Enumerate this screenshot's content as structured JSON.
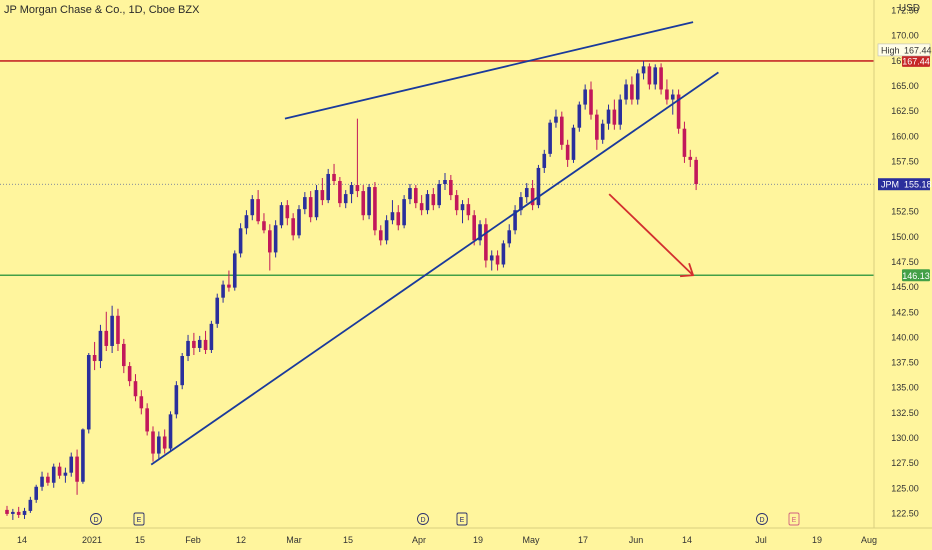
{
  "header": {
    "symbol_title": "JP Morgan Chase & Co., 1D, Cboe BZX",
    "currency": "USD"
  },
  "colors": {
    "background": "#FFF59D",
    "bull": "#2A2F9C",
    "bear": "#C2185B",
    "trendline": "#1A3A9C",
    "resistance": "#C62828",
    "support": "#43A047",
    "arrow": "#D32F2F",
    "price_line": "#5A6A9C"
  },
  "chart_data": {
    "type": "candlestick",
    "title": "JP Morgan Chase & Co., 1D, Cboe BZX",
    "ylabel": "USD",
    "ylim": [
      121.0,
      173.0
    ],
    "y_ticks": [
      122.5,
      125.0,
      127.5,
      130.0,
      132.5,
      135.0,
      137.5,
      140.0,
      142.5,
      145.0,
      147.5,
      150.0,
      152.5,
      155.0,
      157.5,
      160.0,
      162.5,
      165.0,
      167.5,
      170.0,
      172.5
    ],
    "x_ticks": [
      "14",
      "2021",
      "15",
      "Feb",
      "12",
      "Mar",
      "15",
      "Apr",
      "19",
      "May",
      "17",
      "Jun",
      "14",
      "Jul",
      "19",
      "Aug"
    ],
    "event_markers": [
      "D",
      "E",
      "D",
      "E",
      "D",
      "E"
    ],
    "price_labels": {
      "high": {
        "label": "High",
        "value": "167.44"
      },
      "resistance": {
        "value": "167.44"
      },
      "last": {
        "symbol": "JPM",
        "value": "155.18"
      },
      "support": {
        "value": "146.13"
      }
    },
    "candles": [
      [
        122.8,
        123.2,
        122.2,
        122.4
      ],
      [
        122.4,
        122.9,
        121.8,
        122.6
      ],
      [
        122.6,
        123.1,
        122.0,
        122.3
      ],
      [
        122.3,
        123.0,
        121.9,
        122.7
      ],
      [
        122.7,
        124.1,
        122.5,
        123.8
      ],
      [
        123.8,
        125.3,
        123.5,
        125.1
      ],
      [
        125.1,
        126.6,
        124.7,
        126.1
      ],
      [
        126.1,
        126.5,
        125.2,
        125.5
      ],
      [
        125.5,
        127.4,
        125.0,
        127.1
      ],
      [
        127.1,
        127.5,
        125.9,
        126.2
      ],
      [
        126.2,
        127.0,
        125.5,
        126.5
      ],
      [
        126.5,
        128.5,
        126.1,
        128.1
      ],
      [
        128.1,
        128.8,
        124.3,
        125.6
      ],
      [
        125.6,
        130.9,
        125.4,
        130.8
      ],
      [
        130.8,
        138.4,
        130.4,
        138.2
      ],
      [
        138.2,
        139.5,
        136.7,
        137.6
      ],
      [
        137.6,
        141.2,
        136.9,
        140.6
      ],
      [
        140.6,
        142.5,
        138.6,
        139.1
      ],
      [
        139.1,
        143.1,
        138.4,
        142.1
      ],
      [
        142.1,
        142.8,
        138.6,
        139.3
      ],
      [
        139.3,
        139.8,
        136.4,
        137.1
      ],
      [
        137.1,
        137.5,
        135.1,
        135.6
      ],
      [
        135.6,
        136.3,
        133.6,
        134.1
      ],
      [
        134.1,
        134.7,
        132.3,
        132.9
      ],
      [
        132.9,
        133.4,
        130.2,
        130.6
      ],
      [
        130.6,
        131.1,
        127.6,
        128.4
      ],
      [
        128.4,
        130.6,
        127.9,
        130.1
      ],
      [
        130.1,
        130.8,
        128.4,
        128.9
      ],
      [
        128.9,
        132.6,
        128.6,
        132.3
      ],
      [
        132.3,
        135.6,
        131.9,
        135.2
      ],
      [
        135.2,
        138.4,
        134.8,
        138.1
      ],
      [
        138.1,
        140.2,
        137.6,
        139.6
      ],
      [
        139.6,
        140.4,
        138.2,
        138.9
      ],
      [
        138.9,
        140.1,
        138.5,
        139.7
      ],
      [
        139.7,
        140.6,
        138.3,
        138.7
      ],
      [
        138.7,
        141.6,
        138.4,
        141.3
      ],
      [
        141.3,
        144.3,
        140.9,
        143.9
      ],
      [
        143.9,
        145.6,
        143.4,
        145.2
      ],
      [
        145.2,
        146.6,
        144.5,
        144.9
      ],
      [
        144.9,
        148.6,
        144.6,
        148.3
      ],
      [
        148.3,
        151.3,
        147.9,
        150.8
      ],
      [
        150.8,
        152.6,
        150.2,
        152.1
      ],
      [
        152.1,
        154.1,
        151.6,
        153.7
      ],
      [
        153.7,
        154.6,
        151.2,
        151.5
      ],
      [
        151.5,
        152.3,
        150.3,
        150.6
      ],
      [
        150.6,
        151.2,
        146.6,
        148.4
      ],
      [
        148.4,
        151.6,
        147.9,
        151.1
      ],
      [
        151.1,
        153.4,
        150.8,
        153.1
      ],
      [
        153.1,
        153.6,
        151.1,
        151.8
      ],
      [
        151.8,
        152.3,
        149.6,
        150.1
      ],
      [
        150.1,
        153.1,
        149.8,
        152.7
      ],
      [
        152.7,
        154.4,
        152.2,
        153.9
      ],
      [
        153.9,
        154.5,
        151.4,
        151.9
      ],
      [
        151.9,
        155.1,
        151.6,
        154.6
      ],
      [
        154.6,
        155.8,
        153.1,
        153.6
      ],
      [
        153.6,
        156.7,
        153.3,
        156.2
      ],
      [
        156.2,
        157.2,
        155.1,
        155.5
      ],
      [
        155.5,
        155.9,
        152.9,
        153.3
      ],
      [
        153.3,
        154.6,
        152.8,
        154.2
      ],
      [
        154.2,
        155.4,
        153.3,
        155.1
      ],
      [
        155.1,
        161.7,
        153.9,
        154.5
      ],
      [
        154.5,
        155.1,
        151.6,
        152.1
      ],
      [
        152.1,
        155.2,
        151.7,
        154.9
      ],
      [
        154.9,
        155.4,
        150.1,
        150.6
      ],
      [
        150.6,
        151.1,
        149.1,
        149.6
      ],
      [
        149.6,
        152.1,
        149.2,
        151.6
      ],
      [
        151.6,
        153.6,
        151.2,
        152.4
      ],
      [
        152.4,
        153.1,
        150.6,
        151.1
      ],
      [
        151.1,
        154.1,
        150.8,
        153.7
      ],
      [
        153.7,
        155.2,
        153.2,
        154.8
      ],
      [
        154.8,
        155.1,
        152.8,
        153.3
      ],
      [
        153.3,
        154.1,
        152.1,
        152.6
      ],
      [
        152.6,
        154.6,
        152.2,
        154.2
      ],
      [
        154.2,
        154.8,
        152.6,
        153.1
      ],
      [
        153.1,
        155.6,
        152.8,
        155.2
      ],
      [
        155.2,
        156.3,
        154.6,
        155.6
      ],
      [
        155.6,
        156.1,
        153.6,
        154.1
      ],
      [
        154.1,
        154.6,
        152.1,
        152.6
      ],
      [
        152.6,
        153.6,
        151.3,
        153.2
      ],
      [
        153.2,
        153.8,
        151.6,
        152.1
      ],
      [
        152.1,
        152.6,
        149.1,
        149.6
      ],
      [
        149.6,
        151.6,
        149.1,
        151.2
      ],
      [
        151.2,
        151.8,
        146.9,
        147.6
      ],
      [
        147.6,
        148.6,
        146.6,
        148.1
      ],
      [
        148.1,
        148.6,
        146.6,
        147.2
      ],
      [
        147.2,
        149.6,
        146.9,
        149.3
      ],
      [
        149.3,
        151.2,
        148.9,
        150.6
      ],
      [
        150.6,
        153.1,
        150.2,
        152.6
      ],
      [
        152.6,
        154.4,
        152.1,
        153.9
      ],
      [
        153.9,
        155.3,
        153.3,
        154.8
      ],
      [
        154.8,
        155.6,
        152.6,
        153.1
      ],
      [
        153.1,
        157.1,
        152.8,
        156.8
      ],
      [
        156.8,
        158.6,
        156.3,
        158.2
      ],
      [
        158.2,
        161.6,
        157.9,
        161.3
      ],
      [
        161.3,
        162.6,
        160.8,
        161.9
      ],
      [
        161.9,
        162.4,
        158.6,
        159.1
      ],
      [
        159.1,
        159.6,
        156.9,
        157.6
      ],
      [
        157.6,
        161.1,
        157.3,
        160.8
      ],
      [
        160.8,
        163.4,
        160.4,
        163.1
      ],
      [
        163.1,
        165.1,
        162.6,
        164.6
      ],
      [
        164.6,
        165.4,
        161.6,
        162.1
      ],
      [
        162.1,
        162.6,
        158.6,
        159.6
      ],
      [
        159.6,
        161.6,
        159.2,
        161.2
      ],
      [
        161.2,
        163.1,
        160.6,
        162.6
      ],
      [
        162.6,
        163.6,
        160.6,
        161.1
      ],
      [
        161.1,
        164.1,
        160.6,
        163.6
      ],
      [
        163.6,
        165.6,
        163.1,
        165.1
      ],
      [
        165.1,
        165.9,
        163.1,
        163.6
      ],
      [
        163.6,
        166.6,
        163.1,
        166.2
      ],
      [
        166.2,
        167.44,
        165.6,
        166.9
      ],
      [
        166.9,
        167.2,
        164.6,
        165.1
      ],
      [
        165.1,
        167.1,
        164.6,
        166.8
      ],
      [
        166.8,
        167.2,
        164.1,
        164.6
      ],
      [
        164.6,
        165.6,
        163.1,
        163.6
      ],
      [
        163.6,
        164.6,
        162.1,
        164.1
      ],
      [
        164.1,
        164.6,
        160.2,
        160.7
      ],
      [
        160.7,
        161.4,
        157.3,
        157.9
      ],
      [
        157.9,
        158.6,
        156.9,
        157.6
      ],
      [
        157.6,
        157.9,
        154.6,
        155.2
      ]
    ],
    "annotations": {
      "upper_wedge_line": [
        [
          0.326,
          161.7
        ],
        [
          0.793,
          171.3
        ]
      ],
      "lower_wedge_line": [
        [
          0.173,
          127.3
        ],
        [
          0.822,
          166.3
        ]
      ],
      "resistance_line": 167.44,
      "support_line": 146.13,
      "last_price_line": 155.18,
      "projection_arrow": [
        [
          0.697,
          154.2
        ],
        [
          0.793,
          146.13
        ]
      ]
    }
  }
}
